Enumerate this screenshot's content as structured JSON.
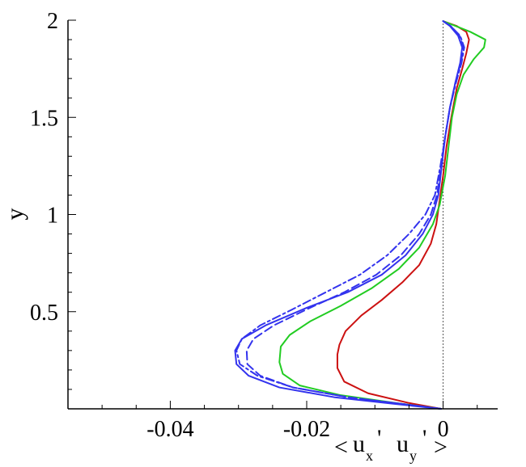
{
  "chart_data": {
    "type": "line",
    "title": "",
    "ylabel": "y",
    "xlabel": {
      "open": "<",
      "u_base": "u",
      "x_sub": "x",
      "v_base": "u",
      "y_sub": "y",
      "prime": "'",
      "close": ">"
    },
    "xlim": [
      -0.055,
      0.008
    ],
    "ylim": [
      0,
      2
    ],
    "xticks": [
      {
        "value": -0.04,
        "label": "-0.04"
      },
      {
        "value": -0.02,
        "label": "-0.02"
      },
      {
        "value": 0,
        "label": "0"
      }
    ],
    "yticks": [
      {
        "value": 0.5,
        "label": "0.5"
      },
      {
        "value": 1,
        "label": "1"
      },
      {
        "value": 1.5,
        "label": "1.5"
      },
      {
        "value": 2,
        "label": "2"
      }
    ],
    "grid": false,
    "legend": "none",
    "reference_line": {
      "x": 0,
      "style": "dotted",
      "color": "#555555"
    },
    "series": [
      {
        "color": "#cc1111",
        "dash": "solid",
        "points": [
          [
            -0.0003,
            0.0
          ],
          [
            -0.005,
            0.03
          ],
          [
            -0.011,
            0.08
          ],
          [
            -0.0145,
            0.14
          ],
          [
            -0.0155,
            0.21
          ],
          [
            -0.0155,
            0.28
          ],
          [
            -0.0152,
            0.33
          ],
          [
            -0.0143,
            0.4
          ],
          [
            -0.012,
            0.48
          ],
          [
            -0.009,
            0.56
          ],
          [
            -0.006,
            0.65
          ],
          [
            -0.0035,
            0.74
          ],
          [
            -0.0018,
            0.85
          ],
          [
            -0.001,
            0.95
          ],
          [
            -0.0006,
            1.05
          ],
          [
            0.0,
            1.2
          ],
          [
            0.0005,
            1.35
          ],
          [
            0.0012,
            1.5
          ],
          [
            0.002,
            1.65
          ],
          [
            0.0028,
            1.75
          ],
          [
            0.0034,
            1.83
          ],
          [
            0.0038,
            1.9
          ],
          [
            0.0034,
            1.94
          ],
          [
            0.002,
            1.97
          ],
          [
            0.0,
            1.995
          ]
        ]
      },
      {
        "color": "#22cc22",
        "dash": "solid",
        "points": [
          [
            -0.0003,
            0.0
          ],
          [
            -0.007,
            0.03
          ],
          [
            -0.015,
            0.07
          ],
          [
            -0.021,
            0.12
          ],
          [
            -0.0235,
            0.18
          ],
          [
            -0.024,
            0.24
          ],
          [
            -0.0238,
            0.32
          ],
          [
            -0.0225,
            0.38
          ],
          [
            -0.0195,
            0.45
          ],
          [
            -0.015,
            0.53
          ],
          [
            -0.0105,
            0.62
          ],
          [
            -0.0065,
            0.72
          ],
          [
            -0.0035,
            0.83
          ],
          [
            -0.0015,
            0.95
          ],
          [
            -0.0005,
            1.05
          ],
          [
            0.0003,
            1.2
          ],
          [
            0.0008,
            1.35
          ],
          [
            0.0013,
            1.5
          ],
          [
            0.002,
            1.62
          ],
          [
            0.003,
            1.72
          ],
          [
            0.0045,
            1.8
          ],
          [
            0.006,
            1.86
          ],
          [
            0.0062,
            1.9
          ],
          [
            0.004,
            1.94
          ],
          [
            0.0015,
            1.975
          ],
          [
            0.0,
            1.995
          ]
        ]
      },
      {
        "color": "#3333ee",
        "dash": "solid",
        "points": [
          [
            -0.0003,
            0.0
          ],
          [
            -0.007,
            0.025
          ],
          [
            -0.016,
            0.06
          ],
          [
            -0.024,
            0.11
          ],
          [
            -0.0285,
            0.17
          ],
          [
            -0.0303,
            0.23
          ],
          [
            -0.0305,
            0.3
          ],
          [
            -0.0295,
            0.36
          ],
          [
            -0.026,
            0.43
          ],
          [
            -0.02,
            0.52
          ],
          [
            -0.014,
            0.6
          ],
          [
            -0.009,
            0.69
          ],
          [
            -0.0055,
            0.79
          ],
          [
            -0.003,
            0.9
          ],
          [
            -0.0015,
            1.0
          ],
          [
            -0.0007,
            1.1
          ],
          [
            -0.0002,
            1.25
          ],
          [
            0.0003,
            1.4
          ],
          [
            0.001,
            1.55
          ],
          [
            0.0018,
            1.68
          ],
          [
            0.0025,
            1.78
          ],
          [
            0.0028,
            1.86
          ],
          [
            0.0022,
            1.92
          ],
          [
            0.001,
            1.97
          ],
          [
            0.0,
            1.995
          ]
        ]
      },
      {
        "color": "#3333ee",
        "dash": "dashed",
        "points": [
          [
            -0.0003,
            0.0
          ],
          [
            -0.006,
            0.025
          ],
          [
            -0.014,
            0.06
          ],
          [
            -0.022,
            0.11
          ],
          [
            -0.0268,
            0.17
          ],
          [
            -0.0287,
            0.23
          ],
          [
            -0.0288,
            0.3
          ],
          [
            -0.0278,
            0.36
          ],
          [
            -0.0248,
            0.43
          ],
          [
            -0.0195,
            0.52
          ],
          [
            -0.0145,
            0.6
          ],
          [
            -0.0098,
            0.69
          ],
          [
            -0.0062,
            0.79
          ],
          [
            -0.0035,
            0.9
          ],
          [
            -0.0018,
            1.0
          ],
          [
            -0.0009,
            1.1
          ],
          [
            -0.0003,
            1.25
          ],
          [
            0.0003,
            1.4
          ],
          [
            0.001,
            1.55
          ],
          [
            0.0018,
            1.68
          ],
          [
            0.0026,
            1.78
          ],
          [
            0.003,
            1.86
          ],
          [
            0.0024,
            1.92
          ],
          [
            0.0011,
            1.97
          ],
          [
            0.0,
            1.995
          ]
        ]
      },
      {
        "color": "#3333ee",
        "dash": "dashdot",
        "points": [
          [
            -0.0003,
            0.0
          ],
          [
            -0.006,
            0.025
          ],
          [
            -0.014,
            0.06
          ],
          [
            -0.022,
            0.11
          ],
          [
            -0.0272,
            0.17
          ],
          [
            -0.0298,
            0.23
          ],
          [
            -0.0303,
            0.3
          ],
          [
            -0.0295,
            0.36
          ],
          [
            -0.0268,
            0.43
          ],
          [
            -0.0222,
            0.51
          ],
          [
            -0.0172,
            0.6
          ],
          [
            -0.0122,
            0.69
          ],
          [
            -0.0082,
            0.79
          ],
          [
            -0.005,
            0.9
          ],
          [
            -0.0026,
            1.0
          ],
          [
            -0.0012,
            1.1
          ],
          [
            -0.0004,
            1.25
          ],
          [
            0.0003,
            1.4
          ],
          [
            0.001,
            1.55
          ],
          [
            0.0019,
            1.68
          ],
          [
            0.0027,
            1.78
          ],
          [
            0.0031,
            1.86
          ],
          [
            0.0025,
            1.92
          ],
          [
            0.0011,
            1.97
          ],
          [
            0.0,
            1.995
          ]
        ]
      }
    ]
  }
}
